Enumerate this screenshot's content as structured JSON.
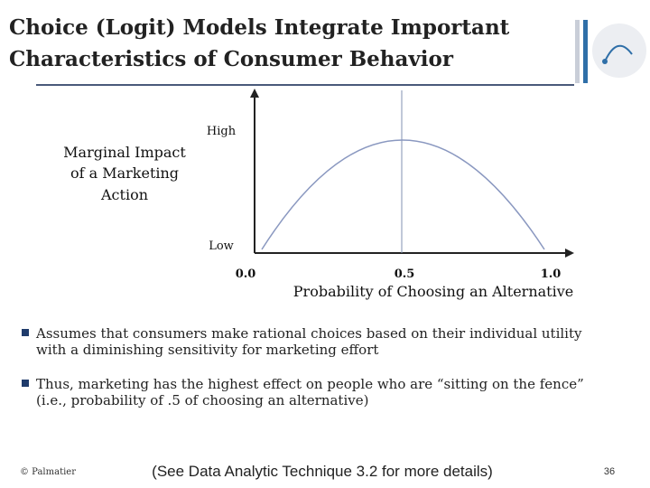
{
  "header": {
    "title_lines": [
      "Choice (Logit) Models Integrate Important",
      "Characteristics of Consumer Behavior"
    ]
  },
  "figure": {
    "y_axis_lines": [
      "Marginal Impact",
      "of a Marketing",
      "Action"
    ],
    "y_high": "High",
    "y_low": "Low",
    "x_ticks": [
      "0.0",
      "0.5",
      "1.0"
    ],
    "x_axis_title": "Probability of Choosing an Alternative"
  },
  "bullets": [
    [
      "Assumes that consumers make rational choices based on their individual utility",
      "with a diminishing sensitivity for marketing effort"
    ],
    [
      "Thus, marketing has the highest effect on people who are “sitting on the fence”",
      "(i.e., probability of .5 of choosing an alternative)"
    ]
  ],
  "footer": {
    "credit": "© Palmatier",
    "note": "(See Data Analytic Technique 3.2 for more details)",
    "page": "36"
  }
}
